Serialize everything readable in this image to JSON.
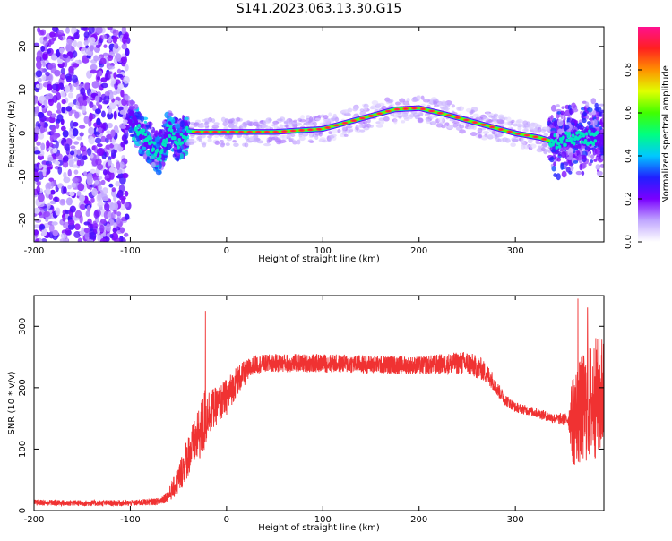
{
  "figure_title": "S141.2023.063.13.30.G15",
  "chart_data": [
    {
      "type": "heatmap",
      "title": "",
      "xlabel": "Height of straight line (km)",
      "ylabel": "Frequency (Hz)",
      "xlim": [
        -200,
        392
      ],
      "ylim": [
        -25,
        24.5
      ],
      "xticks": [
        -200,
        -100,
        0,
        100,
        200,
        300
      ],
      "yticks": [
        -20,
        -10,
        0,
        10,
        20
      ],
      "colorbar": {
        "label": "Normalized spectral amplitude",
        "range": [
          0.0,
          1.0
        ],
        "ticks": [
          "0.0",
          "0.2",
          "0.4",
          "0.6",
          "0.8"
        ],
        "colors": [
          "#ffffff",
          "#c0a6ff",
          "#7a00ff",
          "#2020ff",
          "#00c8ff",
          "#00ff80",
          "#40ff00",
          "#e0ff00",
          "#ff9000",
          "#ff2020",
          "#ff1090"
        ]
      },
      "ridge": {
        "height_km": [
          -100,
          -90,
          -80,
          -70,
          -60,
          -50,
          -40,
          -30,
          0,
          50,
          100,
          150,
          175,
          200,
          225,
          250,
          275,
          300,
          325,
          340,
          360,
          392
        ],
        "frequency_hz": [
          4,
          0,
          -2,
          -5,
          1,
          -2,
          0.5,
          0.3,
          0.3,
          0.3,
          1,
          4,
          5.5,
          5.8,
          4.5,
          3,
          1.5,
          0,
          -1,
          -2,
          -1,
          -1
        ]
      }
    },
    {
      "type": "line",
      "title": "",
      "xlabel": "Height of straight line (km)",
      "ylabel": "SNR (10 * v/v)",
      "xlim": [
        -200,
        392
      ],
      "ylim": [
        0,
        350
      ],
      "xticks": [
        -200,
        -100,
        0,
        100,
        200,
        300
      ],
      "yticks": [
        0,
        100,
        200,
        300
      ],
      "line_color": "#f03232",
      "series": [
        {
          "x": [
            -200,
            -150,
            -100,
            -70,
            -60,
            -50,
            -40,
            -30,
            -22,
            -20,
            -10,
            0,
            10,
            20,
            30,
            50,
            100,
            150,
            200,
            240,
            250,
            265,
            275,
            280,
            290,
            300,
            320,
            340,
            355,
            360,
            380,
            392
          ],
          "y": [
            13,
            12,
            12,
            15,
            25,
            50,
            90,
            120,
            145,
            160,
            170,
            185,
            210,
            225,
            238,
            240,
            240,
            238,
            236,
            240,
            240,
            230,
            215,
            200,
            180,
            168,
            160,
            150,
            148,
            150,
            180,
            190
          ],
          "noise": [
            5,
            5,
            5,
            6,
            10,
            25,
            35,
            40,
            60,
            40,
            30,
            30,
            25,
            20,
            15,
            15,
            15,
            15,
            15,
            18,
            20,
            18,
            15,
            12,
            10,
            8,
            8,
            8,
            10,
            80,
            100,
            100
          ]
        }
      ],
      "spikes": [
        {
          "x": -22,
          "y": 325
        },
        {
          "x": 365,
          "y": 345
        },
        {
          "x": 375,
          "y": 330
        }
      ]
    }
  ]
}
